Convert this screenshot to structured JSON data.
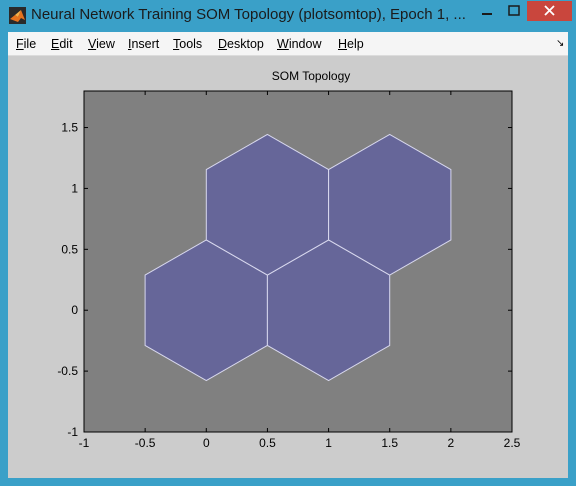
{
  "window": {
    "title": "Neural Network Training SOM Topology (plotsomtop), Epoch 1, ..."
  },
  "menu": {
    "items": [
      {
        "key": "file",
        "label": "File",
        "ul": "F",
        "rest": "ile"
      },
      {
        "key": "edit",
        "label": "Edit",
        "ul": "E",
        "rest": "dit"
      },
      {
        "key": "view",
        "label": "View",
        "ul": "V",
        "rest": "iew"
      },
      {
        "key": "insert",
        "label": "Insert",
        "ul": "I",
        "rest": "nsert"
      },
      {
        "key": "tools",
        "label": "Tools",
        "ul": "T",
        "rest": "ools"
      },
      {
        "key": "desktop",
        "label": "Desktop",
        "ul": "D",
        "rest": "esktop"
      },
      {
        "key": "window",
        "label": "Window",
        "ul": "W",
        "rest": "indow"
      },
      {
        "key": "help",
        "label": "Help",
        "ul": "H",
        "rest": "elp"
      }
    ]
  },
  "icons": {
    "app": "matlab-logo-icon",
    "minimize": "minimize-icon",
    "maximize": "maximize-icon",
    "close": "close-icon",
    "dock": "dock-arrow-icon"
  },
  "colors": {
    "plot_background": "#808080",
    "neuron_fill": "#666699",
    "neuron_edge": "#d8d8ee",
    "figure_background": "#cccccc"
  },
  "chart_data": {
    "type": "hexagon-topology",
    "title": "SOM Topology",
    "xlim": [
      -1,
      2.5
    ],
    "ylim": [
      -1,
      1.8
    ],
    "xticks": [
      -1,
      -0.5,
      0,
      0.5,
      1,
      1.5,
      2,
      2.5
    ],
    "xtick_labels": [
      "-1",
      "-0.5",
      "0",
      "0.5",
      "1",
      "1.5",
      "2",
      "2.5"
    ],
    "yticks": [
      -1,
      -0.5,
      0,
      0.5,
      1,
      1.5
    ],
    "ytick_labels": [
      "-1",
      "-0.5",
      "0",
      "0.5",
      "1",
      "1.5"
    ],
    "neurons": [
      {
        "x": 0,
        "y": 0
      },
      {
        "x": 1,
        "y": 0
      },
      {
        "x": 0.5,
        "y": 0.866
      },
      {
        "x": 1.5,
        "y": 0.866
      }
    ]
  }
}
